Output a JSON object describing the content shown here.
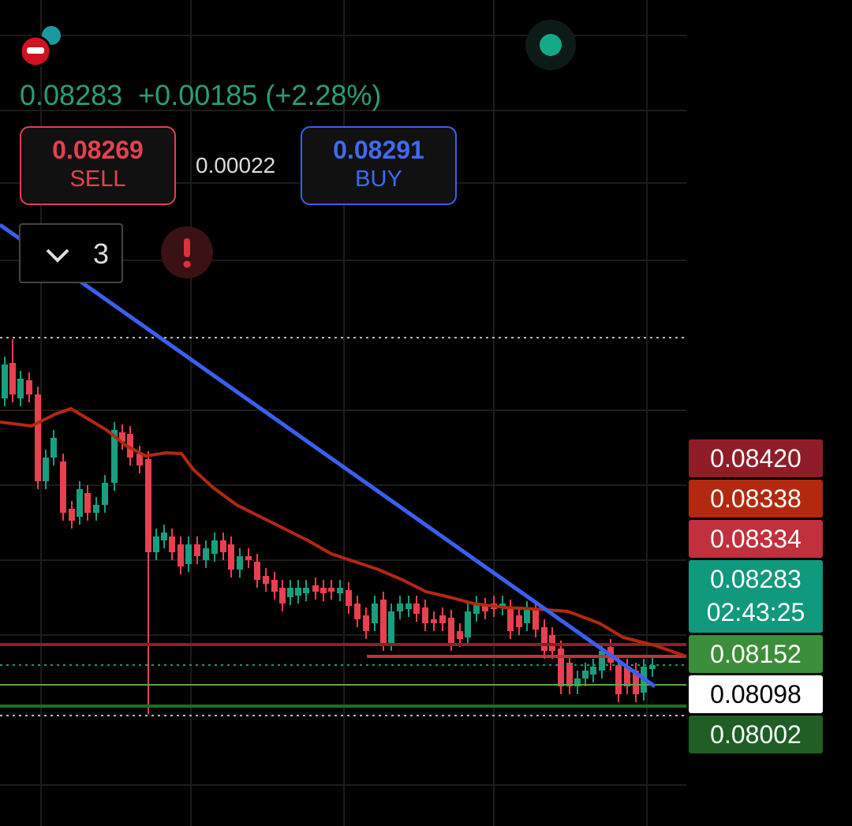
{
  "header": {
    "price": "0.08283",
    "change": "+0.00185",
    "change_pct": "(+2.28%)"
  },
  "sell": {
    "price": "0.08269",
    "label": "SELL"
  },
  "spread": "0.00022",
  "buy": {
    "price": "0.08291",
    "label": "BUY"
  },
  "dropdown": {
    "count": "3"
  },
  "price_labels": [
    {
      "price": "0.08420",
      "color": "#8e1d27"
    },
    {
      "price": "0.08338",
      "color": "#b2290f"
    },
    {
      "price": "0.08334",
      "color": "#c1303d"
    },
    {
      "price": "0.08283",
      "timer": "02:43:25",
      "color": "#10997c"
    },
    {
      "price": "0.08152",
      "color": "#3c8f3a"
    },
    {
      "price": "0.08098",
      "color": "#ffffff"
    },
    {
      "price": "0.08002",
      "color": "#1f5f25"
    }
  ]
}
